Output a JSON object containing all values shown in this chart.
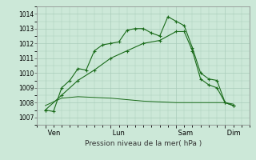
{
  "title": "",
  "xlabel": "Pression niveau de la mer( hPa )",
  "bg_color": "#cce8d8",
  "grid_color": "#aaccbb",
  "line_color": "#1a6b1a",
  "ylim": [
    1006.5,
    1014.5
  ],
  "yticks": [
    1007,
    1008,
    1009,
    1010,
    1011,
    1012,
    1013,
    1014
  ],
  "xtick_labels": [
    " Ven",
    " Lun",
    " Sam",
    " Dim"
  ],
  "xtick_positions": [
    0,
    4,
    8,
    11
  ],
  "xlim": [
    -0.5,
    12.5
  ],
  "line1_x": [
    0,
    0.5,
    1,
    1.5,
    2,
    2.5,
    3,
    3.5,
    4,
    4.5,
    5,
    5.5,
    6,
    6.5,
    7,
    7.5,
    8,
    8.5,
    9,
    9.5,
    10,
    10.5,
    11,
    11.5
  ],
  "line1_y": [
    1007.5,
    1007.4,
    1009.0,
    1009.5,
    1010.3,
    1010.2,
    1011.5,
    1011.9,
    1012.0,
    1012.1,
    1012.9,
    1013.0,
    1013.0,
    1012.7,
    1012.5,
    1013.8,
    1013.5,
    1013.2,
    1011.7,
    1010.0,
    1009.6,
    1009.5,
    1008.0,
    1007.8
  ],
  "line2_x": [
    0,
    1,
    2,
    3,
    4,
    5,
    6,
    7,
    8,
    8.5,
    9,
    9.5,
    10,
    10.5,
    11,
    11.5
  ],
  "line2_y": [
    1007.5,
    1008.5,
    1009.5,
    1010.2,
    1011.0,
    1011.5,
    1012.0,
    1012.2,
    1012.8,
    1012.8,
    1011.5,
    1009.6,
    1009.2,
    1009.0,
    1008.0,
    1007.8
  ],
  "line3_x": [
    0,
    1,
    2,
    3,
    4,
    5,
    6,
    7,
    8,
    9,
    10,
    11,
    11.5
  ],
  "line3_y": [
    1007.8,
    1008.3,
    1008.4,
    1008.35,
    1008.3,
    1008.2,
    1008.1,
    1008.05,
    1008.0,
    1008.0,
    1008.0,
    1008.0,
    1007.9
  ]
}
